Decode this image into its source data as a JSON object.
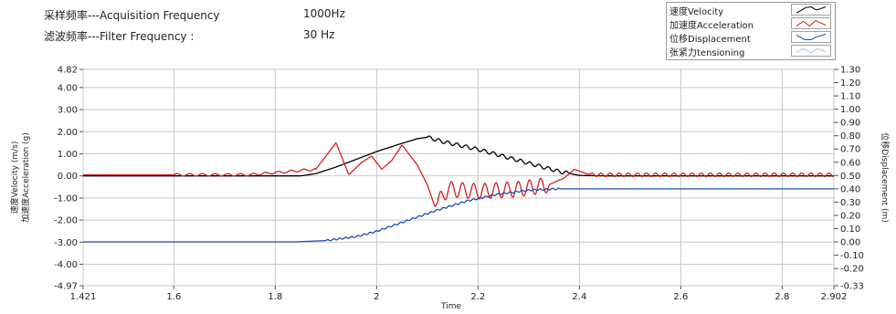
{
  "header": {
    "acq_label": "采样频率---Acquisition Frequency",
    "acq_value": "1000Hz",
    "filter_label": "滤波频率---Filter Frequency :",
    "filter_value": "30    Hz"
  },
  "legend": {
    "items": [
      {
        "label": "速度Velocity",
        "color": "#000000"
      },
      {
        "label": "加速度Acceleration",
        "color": "#d42020"
      },
      {
        "label": "位移Displacement",
        "color": "#1f4fa8"
      },
      {
        "label": "张紧力tensioning",
        "color": "#a9c6e6"
      }
    ]
  },
  "chart_data": {
    "type": "line",
    "xlabel": "Time",
    "ylabel_left_1": "速度Velocity (m/s)",
    "ylabel_left_2": "加速度Acceleration (g)",
    "ylabel_right": "位移Displacement (m)",
    "xlim": [
      1.421,
      2.902
    ],
    "ylim_left": [
      -4.97,
      4.82
    ],
    "ylim_right": [
      -0.33,
      1.3
    ],
    "x_ticks": [
      "1.421",
      "1.6",
      "1.8",
      "2",
      "2.2",
      "2.4",
      "2.6",
      "2.8",
      "2.902"
    ],
    "x_tick_values": [
      1.421,
      1.6,
      1.8,
      2.0,
      2.2,
      2.4,
      2.6,
      2.8,
      2.902
    ],
    "left_ticks": [
      "4.82",
      "4.00",
      "3.00",
      "2.00",
      "1.00",
      "0.00",
      "-1.00",
      "-2.00",
      "-3.00",
      "-4.00",
      "-4.97"
    ],
    "left_tick_values": [
      4.82,
      4.0,
      3.0,
      2.0,
      1.0,
      0.0,
      -1.0,
      -2.0,
      -3.0,
      -4.0,
      -4.97
    ],
    "right_ticks": [
      "1.30",
      "1.20",
      "1.10",
      "1.00",
      "0.90",
      "0.80",
      "0.70",
      "0.60",
      "0.50",
      "0.40",
      "0.30",
      "0.20",
      "0.10",
      "0.00",
      "-0.10",
      "-0.20",
      "-0.33"
    ],
    "right_tick_values": [
      1.3,
      1.2,
      1.1,
      1.0,
      0.9,
      0.8,
      0.7,
      0.6,
      0.5,
      0.4,
      0.3,
      0.2,
      0.1,
      0.0,
      -0.1,
      -0.2,
      -0.33
    ],
    "grid": true,
    "legend_position": "top-right",
    "series": [
      {
        "name": "速度Velocity",
        "axis": "left",
        "color": "#000000",
        "points": [
          [
            1.421,
            0
          ],
          [
            1.85,
            0
          ],
          [
            1.88,
            0.1
          ],
          [
            1.92,
            0.4
          ],
          [
            1.96,
            0.75
          ],
          [
            2.0,
            1.1
          ],
          [
            2.04,
            1.4
          ],
          [
            2.08,
            1.68
          ],
          [
            2.1,
            1.75
          ],
          [
            2.13,
            1.55
          ],
          [
            2.16,
            1.4
          ],
          [
            2.2,
            1.2
          ],
          [
            2.24,
            0.95
          ],
          [
            2.28,
            0.7
          ],
          [
            2.32,
            0.45
          ],
          [
            2.36,
            0.2
          ],
          [
            2.4,
            0.02
          ],
          [
            2.45,
            0
          ],
          [
            2.902,
            0
          ]
        ],
        "oscillation": [
          {
            "from": 2.1,
            "to": 2.38,
            "amplitude": 0.08,
            "period": 0.018
          }
        ]
      },
      {
        "name": "加速度Acceleration",
        "axis": "left",
        "color": "#d42020",
        "points": [
          [
            1.421,
            0.05
          ],
          [
            1.75,
            0.05
          ],
          [
            1.88,
            0.3
          ],
          [
            1.92,
            1.5
          ],
          [
            1.945,
            0.05
          ],
          [
            1.97,
            0.6
          ],
          [
            1.99,
            0.9
          ],
          [
            2.01,
            0.3
          ],
          [
            2.03,
            0.7
          ],
          [
            2.05,
            1.4
          ],
          [
            2.08,
            0.5
          ],
          [
            2.1,
            -0.4
          ],
          [
            2.115,
            -1.4
          ],
          [
            2.14,
            -0.6
          ],
          [
            2.2,
            -0.7
          ],
          [
            2.28,
            -0.6
          ],
          [
            2.34,
            -0.4
          ],
          [
            2.37,
            -0.1
          ],
          [
            2.39,
            0.3
          ],
          [
            2.42,
            0.05
          ],
          [
            2.902,
            0.05
          ]
        ],
        "oscillation": [
          {
            "from": 1.6,
            "to": 1.88,
            "amplitude": 0.05,
            "period": 0.025
          },
          {
            "from": 2.12,
            "to": 2.34,
            "amplitude": 0.35,
            "period": 0.022
          },
          {
            "from": 2.42,
            "to": 2.902,
            "amplitude": 0.08,
            "period": 0.018
          }
        ]
      },
      {
        "name": "位移Displacement",
        "axis": "right",
        "color": "#1f4fa8",
        "points": [
          [
            1.421,
            0
          ],
          [
            1.84,
            0
          ],
          [
            1.9,
            0.01
          ],
          [
            1.96,
            0.04
          ],
          [
            2.0,
            0.08
          ],
          [
            2.06,
            0.16
          ],
          [
            2.12,
            0.24
          ],
          [
            2.18,
            0.31
          ],
          [
            2.24,
            0.36
          ],
          [
            2.3,
            0.39
          ],
          [
            2.36,
            0.4
          ],
          [
            2.902,
            0.4
          ]
        ],
        "oscillation": [
          {
            "from": 1.9,
            "to": 2.36,
            "amplitude": 0.006,
            "period": 0.012
          }
        ]
      },
      {
        "name": "张紧力tensioning",
        "axis": "right",
        "color": "#a9c6e6",
        "points": []
      }
    ]
  }
}
